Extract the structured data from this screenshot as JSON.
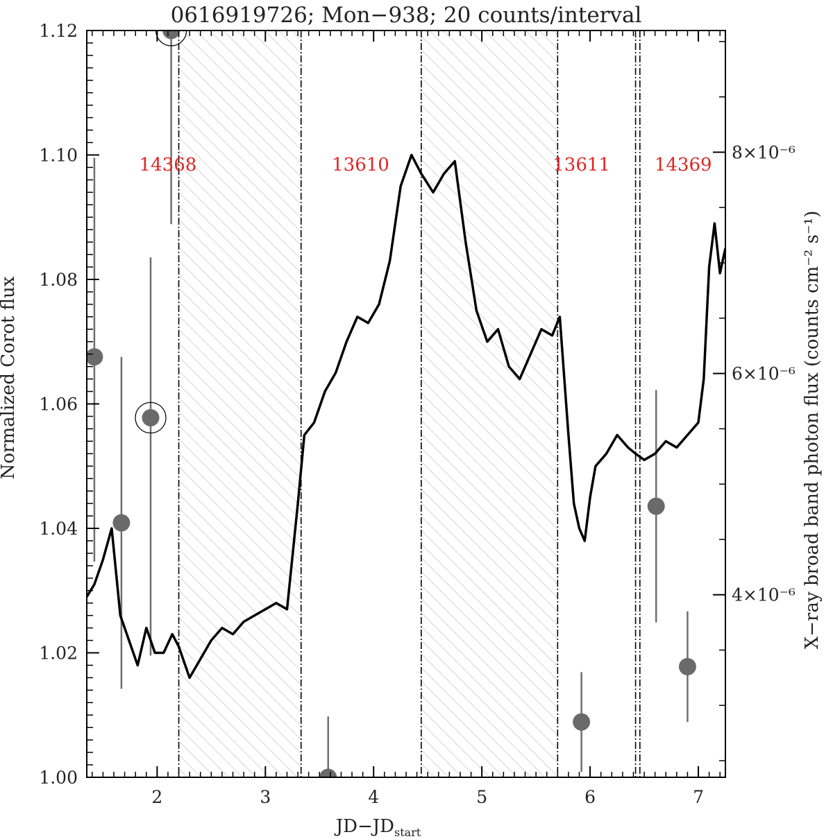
{
  "chart_data": {
    "type": "line",
    "title": "0616919726; Mon−938; 20 counts/interval",
    "xlabel_main": "JD−JD",
    "xlabel_sub": "start",
    "ylabel": "Normalized Corot flux",
    "y2label": "X−ray broad band photon flux (counts cm⁻² s⁻¹)",
    "xlim": [
      1.35,
      7.25
    ],
    "ylim": [
      1.0,
      1.12
    ],
    "y2lim": [
      2.35e-06,
      9.1e-06
    ],
    "x_ticks": [
      2,
      3,
      4,
      5,
      6,
      7
    ],
    "x_tick_labels": [
      "2",
      "3",
      "4",
      "5",
      "6",
      "7"
    ],
    "y_ticks": [
      1.0,
      1.02,
      1.04,
      1.06,
      1.08,
      1.1,
      1.12
    ],
    "y_tick_labels": [
      "1.00",
      "1.02",
      "1.04",
      "1.06",
      "1.08",
      "1.10",
      "1.12"
    ],
    "y2_ticks": [
      4e-06,
      6e-06,
      8e-06
    ],
    "y2_tick_labels": [
      "4×10⁻⁶",
      "6×10⁻⁶",
      "8×10⁻⁶"
    ],
    "observations": [
      {
        "label": "14368",
        "label_x": 2.1,
        "x0": null,
        "x1": null
      },
      {
        "label": "13610",
        "label_x": 3.88,
        "x0": 3.33,
        "x1": 4.44
      },
      {
        "label": "13611",
        "label_x": 5.92,
        "x0": 5.7,
        "x1": 6.42
      },
      {
        "label": "14369",
        "label_x": 6.86,
        "x0": 6.46,
        "x1": 7.25
      }
    ],
    "hatched_gaps": [
      [
        2.2,
        3.33
      ],
      [
        4.44,
        5.7
      ]
    ],
    "gap_boundaries": [
      2.2,
      3.33,
      4.44,
      5.7,
      6.42,
      6.46
    ],
    "corot_flux": {
      "x": [
        1.35,
        1.42,
        1.5,
        1.58,
        1.66,
        1.74,
        1.82,
        1.9,
        1.98,
        2.06,
        2.14,
        2.2,
        2.3,
        2.4,
        2.5,
        2.6,
        2.7,
        2.8,
        2.9,
        3.0,
        3.1,
        3.2,
        3.3,
        3.36,
        3.45,
        3.55,
        3.65,
        3.75,
        3.85,
        3.95,
        4.05,
        4.15,
        4.25,
        4.35,
        4.44,
        4.55,
        4.65,
        4.75,
        4.85,
        4.95,
        5.05,
        5.15,
        5.25,
        5.35,
        5.45,
        5.55,
        5.65,
        5.72,
        5.8,
        5.85,
        5.9,
        5.95,
        6.0,
        6.05,
        6.15,
        6.25,
        6.35,
        6.42,
        6.5,
        6.6,
        6.7,
        6.8,
        6.9,
        7.0,
        7.05,
        7.1,
        7.15,
        7.2,
        7.25
      ],
      "y": [
        1.029,
        1.031,
        1.035,
        1.04,
        1.026,
        1.022,
        1.018,
        1.024,
        1.02,
        1.02,
        1.023,
        1.021,
        1.016,
        1.019,
        1.022,
        1.024,
        1.023,
        1.025,
        1.026,
        1.027,
        1.028,
        1.027,
        1.044,
        1.055,
        1.057,
        1.062,
        1.065,
        1.07,
        1.074,
        1.073,
        1.076,
        1.083,
        1.095,
        1.1,
        1.097,
        1.094,
        1.097,
        1.099,
        1.086,
        1.075,
        1.07,
        1.072,
        1.066,
        1.064,
        1.068,
        1.072,
        1.071,
        1.074,
        1.055,
        1.044,
        1.04,
        1.038,
        1.045,
        1.05,
        1.052,
        1.055,
        1.053,
        1.052,
        1.051,
        1.052,
        1.054,
        1.053,
        1.055,
        1.057,
        1.064,
        1.082,
        1.089,
        1.081,
        1.085
      ]
    },
    "xray_points": [
      {
        "x": 1.42,
        "y": 6.15e-06,
        "ylo": 4.3e-06,
        "yhi": 7.95e-06,
        "circled": false
      },
      {
        "x": 1.67,
        "y": 4.65e-06,
        "ylo": 3.15e-06,
        "yhi": 6.15e-06,
        "circled": false
      },
      {
        "x": 1.94,
        "y": 5.6e-06,
        "ylo": 3.45e-06,
        "yhi": 7.05e-06,
        "circled": true
      },
      {
        "x": 2.13,
        "y": 9.1e-06,
        "ylo": 7.35e-06,
        "yhi": 9.1e-06,
        "circled": true
      },
      {
        "x": 3.58,
        "y": 2.35e-06,
        "ylo": 2.35e-06,
        "yhi": 2.9e-06,
        "circled": false
      },
      {
        "x": 5.92,
        "y": 2.85e-06,
        "ylo": 2.4e-06,
        "yhi": 3.3e-06,
        "circled": false
      },
      {
        "x": 6.61,
        "y": 4.8e-06,
        "ylo": 3.75e-06,
        "yhi": 5.85e-06,
        "circled": false
      },
      {
        "x": 6.9,
        "y": 3.35e-06,
        "ylo": 2.85e-06,
        "yhi": 3.85e-06,
        "circled": false
      }
    ]
  }
}
